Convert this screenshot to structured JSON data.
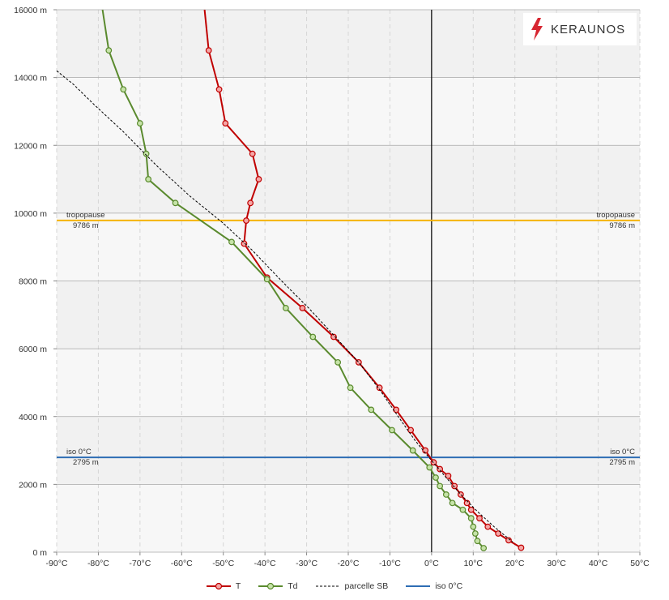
{
  "chart_data": {
    "type": "line",
    "x_axis": {
      "unit": "°C",
      "min": -90,
      "max": 50,
      "ticks": [
        "-90°C",
        "-80°C",
        "-70°C",
        "-60°C",
        "-50°C",
        "-40°C",
        "-30°C",
        "-20°C",
        "-10°C",
        "0°C",
        "10°C",
        "20°C",
        "30°C",
        "40°C",
        "50°C"
      ]
    },
    "y_axis": {
      "unit": "m",
      "min": 0,
      "max": 16000,
      "ticks": [
        "0 m",
        "2000 m",
        "4000 m",
        "6000 m",
        "8000 m",
        "10000 m",
        "12000 m",
        "14000 m",
        "16000 m"
      ]
    },
    "grid": true,
    "legend_position": "bottom",
    "series": [
      {
        "name": "T",
        "color": "#c00000",
        "markers": true,
        "points": [
          {
            "x": -54.5,
            "y": 16000
          },
          {
            "x": -53.5,
            "y": 14800
          },
          {
            "x": -51,
            "y": 13650
          },
          {
            "x": -49.5,
            "y": 12650
          },
          {
            "x": -43,
            "y": 11750
          },
          {
            "x": -41.5,
            "y": 11000
          },
          {
            "x": -43.5,
            "y": 10300
          },
          {
            "x": -44.5,
            "y": 9780
          },
          {
            "x": -45,
            "y": 9100
          },
          {
            "x": -39.5,
            "y": 8100
          },
          {
            "x": -31,
            "y": 7200
          },
          {
            "x": -23.5,
            "y": 6350
          },
          {
            "x": -17.5,
            "y": 5600
          },
          {
            "x": -12.5,
            "y": 4850
          },
          {
            "x": -8.5,
            "y": 4200
          },
          {
            "x": -5,
            "y": 3600
          },
          {
            "x": -1.5,
            "y": 3000
          },
          {
            "x": 0.5,
            "y": 2650
          },
          {
            "x": 2,
            "y": 2450
          },
          {
            "x": 4,
            "y": 2250
          },
          {
            "x": 5.5,
            "y": 1950
          },
          {
            "x": 7,
            "y": 1700
          },
          {
            "x": 8.5,
            "y": 1450
          },
          {
            "x": 9.5,
            "y": 1250
          },
          {
            "x": 11.5,
            "y": 1000
          },
          {
            "x": 13.5,
            "y": 750
          },
          {
            "x": 16,
            "y": 550
          },
          {
            "x": 18.5,
            "y": 350
          },
          {
            "x": 21.5,
            "y": 130
          }
        ]
      },
      {
        "name": "Td",
        "color": "#5a8a2e",
        "markers": true,
        "points": [
          {
            "x": -79,
            "y": 16000
          },
          {
            "x": -77.5,
            "y": 14800
          },
          {
            "x": -74,
            "y": 13650
          },
          {
            "x": -70,
            "y": 12650
          },
          {
            "x": -68.5,
            "y": 11750
          },
          {
            "x": -68,
            "y": 11000
          },
          {
            "x": -61.5,
            "y": 10300
          },
          {
            "x": -48,
            "y": 9150
          },
          {
            "x": -39.5,
            "y": 8050
          },
          {
            "x": -35,
            "y": 7200
          },
          {
            "x": -28.5,
            "y": 6350
          },
          {
            "x": -22.5,
            "y": 5600
          },
          {
            "x": -19.5,
            "y": 4850
          },
          {
            "x": -14.5,
            "y": 4200
          },
          {
            "x": -9.5,
            "y": 3600
          },
          {
            "x": -4.5,
            "y": 3000
          },
          {
            "x": -0.5,
            "y": 2500
          },
          {
            "x": 1,
            "y": 2200
          },
          {
            "x": 2,
            "y": 1950
          },
          {
            "x": 3.5,
            "y": 1700
          },
          {
            "x": 5,
            "y": 1450
          },
          {
            "x": 7.5,
            "y": 1250
          },
          {
            "x": 9.5,
            "y": 1000
          },
          {
            "x": 10,
            "y": 750
          },
          {
            "x": 10.5,
            "y": 550
          },
          {
            "x": 11,
            "y": 330
          },
          {
            "x": 12.5,
            "y": 120
          }
        ]
      },
      {
        "name": "parcelle SB",
        "color": "#000000",
        "dashed": true,
        "points": [
          {
            "x": -90,
            "y": 14200
          },
          {
            "x": -86,
            "y": 13800
          },
          {
            "x": -81,
            "y": 13200
          },
          {
            "x": -74,
            "y": 12400
          },
          {
            "x": -66,
            "y": 11400
          },
          {
            "x": -58,
            "y": 10500
          },
          {
            "x": -50,
            "y": 9700
          },
          {
            "x": -43,
            "y": 8900
          },
          {
            "x": -36,
            "y": 8000
          },
          {
            "x": -29.5,
            "y": 7200
          },
          {
            "x": -23.5,
            "y": 6400
          },
          {
            "x": -17.5,
            "y": 5600
          },
          {
            "x": -12.5,
            "y": 4800
          },
          {
            "x": -8,
            "y": 4000
          },
          {
            "x": -4,
            "y": 3300
          },
          {
            "x": 0,
            "y": 2700
          },
          {
            "x": 3.5,
            "y": 2200
          },
          {
            "x": 7,
            "y": 1700
          },
          {
            "x": 11,
            "y": 1200
          },
          {
            "x": 15,
            "y": 750
          },
          {
            "x": 19.5,
            "y": 300
          }
        ]
      },
      {
        "name": "iso 0°C",
        "color": "#2e6db4",
        "horizontal_line_y": 2795
      }
    ],
    "reference_lines": [
      {
        "label": "tropopause",
        "value_label": "9786 m",
        "y": 9786,
        "color": "#f5b400"
      },
      {
        "label": "iso 0°C",
        "value_label": "2795 m",
        "y": 2795,
        "color": "#2e6db4"
      }
    ],
    "zero_line_x": 0
  },
  "legend": [
    {
      "label": "T",
      "color": "#c00000",
      "style": "line-marker"
    },
    {
      "label": "Td",
      "color": "#5a8a2e",
      "style": "line-marker"
    },
    {
      "label": "parcelle SB",
      "color": "#000000",
      "style": "dashed"
    },
    {
      "label": "iso 0°C",
      "color": "#2e6db4",
      "style": "line"
    }
  ],
  "logo": {
    "text": "KERAUNOS",
    "icon": "lightning-bolt-icon",
    "icon_color": "#d72631"
  }
}
